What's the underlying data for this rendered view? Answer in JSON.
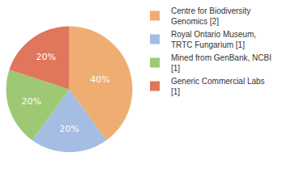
{
  "chart_data": {
    "type": "pie",
    "categories": [
      "Centre for Biodiversity Genomics [2]",
      "Royal Ontario Museum, TRTC Fungarium [1]",
      "Mined from GenBank, NCBI [1]",
      "Generic Commercial Labs [1]"
    ],
    "values": [
      40,
      20,
      20,
      20
    ],
    "value_labels": [
      "40%",
      "20%",
      "20%",
      "20%"
    ],
    "colors": [
      "#efad72",
      "#a5bce3",
      "#9fc875",
      "#e0765c"
    ],
    "data_labels": true,
    "legend": "right"
  }
}
